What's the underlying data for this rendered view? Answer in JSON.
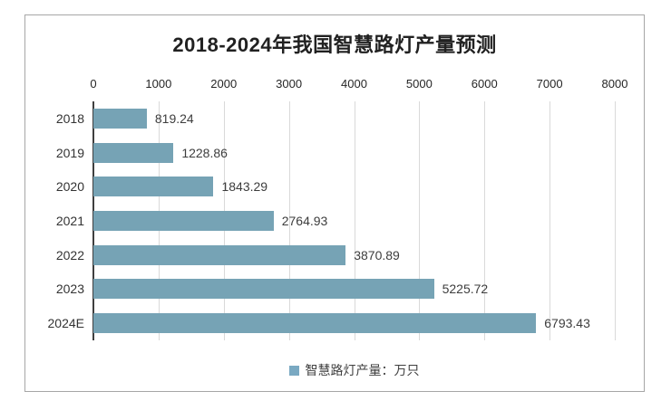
{
  "chart_data": {
    "type": "bar",
    "orientation": "horizontal",
    "title": "2018-2024年我国智慧路灯产量预测",
    "categories": [
      "2018",
      "2019",
      "2020",
      "2021",
      "2022",
      "2023",
      "2024E"
    ],
    "values": [
      819.24,
      1228.86,
      1843.29,
      2764.93,
      3870.89,
      5225.72,
      6793.43
    ],
    "value_labels": [
      "819.24",
      "1228.86",
      "1843.29",
      "2764.93",
      "3870.89",
      "5225.72",
      "6793.43"
    ],
    "xlim": [
      0,
      8000
    ],
    "x_ticks": [
      "0",
      "1000",
      "2000",
      "3000",
      "4000",
      "5000",
      "6000",
      "7000",
      "8000"
    ],
    "xlabel": "",
    "ylabel": "",
    "grid": true,
    "legend": [
      "智慧路灯产量：万只"
    ],
    "legend_position": "bottom"
  },
  "colors": {
    "bar": "#76a3b5",
    "legend_marker": "#7aa9c2",
    "gridline": "#d9d9d9",
    "axis_line": "#3f3f3f",
    "title_text": "#212121",
    "border": "#a6a6a6"
  }
}
